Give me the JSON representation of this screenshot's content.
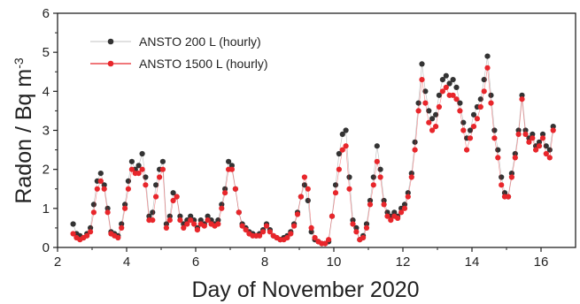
{
  "chart_data": {
    "type": "line",
    "xlabel": "Day of November 2020",
    "ylabel_main": "Radon  /  Bq m",
    "ylabel_exp": "-3",
    "xlim": [
      2,
      17
    ],
    "ylim": [
      0,
      6
    ],
    "x_ticks": [
      2,
      4,
      6,
      8,
      10,
      12,
      14,
      16
    ],
    "x_tick_labels": [
      "2",
      "4",
      "6",
      "8",
      "10",
      "12",
      "14",
      "16"
    ],
    "y_ticks": [
      0,
      1,
      2,
      3,
      4,
      5,
      6
    ],
    "y_tick_labels": [
      "0",
      "1",
      "2",
      "3",
      "4",
      "5",
      "6"
    ],
    "grid": false,
    "legend_position": "top-left",
    "series": [
      {
        "name": "ANSTO 200 L (hourly)",
        "color": "#333333",
        "marker": "dot",
        "x": [
          2.45,
          2.55,
          2.65,
          2.75,
          2.85,
          2.95,
          3.05,
          3.15,
          3.25,
          3.35,
          3.45,
          3.55,
          3.65,
          3.75,
          3.85,
          3.95,
          4.05,
          4.15,
          4.25,
          4.35,
          4.45,
          4.55,
          4.65,
          4.75,
          4.85,
          4.95,
          5.05,
          5.15,
          5.25,
          5.35,
          5.45,
          5.55,
          5.65,
          5.75,
          5.85,
          5.95,
          6.05,
          6.15,
          6.25,
          6.35,
          6.45,
          6.55,
          6.65,
          6.75,
          6.85,
          6.95,
          7.05,
          7.15,
          7.25,
          7.35,
          7.45,
          7.55,
          7.65,
          7.75,
          7.85,
          7.95,
          8.05,
          8.15,
          8.25,
          8.35,
          8.45,
          8.55,
          8.65,
          8.75,
          8.85,
          8.95,
          9.05,
          9.15,
          9.25,
          9.35,
          9.45,
          9.55,
          9.65,
          9.75,
          9.85,
          9.95,
          10.05,
          10.15,
          10.25,
          10.35,
          10.45,
          10.55,
          10.65,
          10.75,
          10.85,
          10.95,
          11.05,
          11.15,
          11.25,
          11.35,
          11.45,
          11.55,
          11.65,
          11.75,
          11.85,
          11.95,
          12.05,
          12.15,
          12.25,
          12.35,
          12.45,
          12.55,
          12.65,
          12.75,
          12.85,
          12.95,
          13.05,
          13.15,
          13.25,
          13.35,
          13.45,
          13.55,
          13.65,
          13.75,
          13.85,
          13.95,
          14.05,
          14.15,
          14.25,
          14.35,
          14.45,
          14.55,
          14.65,
          14.75,
          14.85,
          14.95,
          15.05,
          15.15,
          15.25,
          15.35,
          15.45,
          15.55,
          15.65,
          15.75,
          15.85,
          15.95,
          16.05,
          16.15,
          16.25,
          16.35
        ],
        "y": [
          0.6,
          0.35,
          0.3,
          0.25,
          0.35,
          0.5,
          1.1,
          1.7,
          1.9,
          1.6,
          1.0,
          0.4,
          0.35,
          0.3,
          0.6,
          1.1,
          1.7,
          2.2,
          2.0,
          2.1,
          2.4,
          1.8,
          0.8,
          0.9,
          1.6,
          2.0,
          2.2,
          0.6,
          0.8,
          1.4,
          1.3,
          0.8,
          0.6,
          0.7,
          0.8,
          0.7,
          0.5,
          0.7,
          0.6,
          0.8,
          0.7,
          0.6,
          0.7,
          1.1,
          1.5,
          2.2,
          2.1,
          1.5,
          0.9,
          0.6,
          0.5,
          0.4,
          0.35,
          0.3,
          0.35,
          0.45,
          0.6,
          0.45,
          0.3,
          0.25,
          0.2,
          0.25,
          0.3,
          0.4,
          0.6,
          0.9,
          1.3,
          1.6,
          1.2,
          0.4,
          0.2,
          0.15,
          0.1,
          0.1,
          0.15,
          0.8,
          1.6,
          2.4,
          2.9,
          3.0,
          1.8,
          0.7,
          0.5,
          0.2,
          0.3,
          0.6,
          1.2,
          1.8,
          2.6,
          2.0,
          1.2,
          0.9,
          0.8,
          0.9,
          0.8,
          1.0,
          1.1,
          1.4,
          1.9,
          2.7,
          3.7,
          4.7,
          4.0,
          3.5,
          3.3,
          3.4,
          3.9,
          4.3,
          4.4,
          4.2,
          4.3,
          4.1,
          3.7,
          3.2,
          2.8,
          3.0,
          3.4,
          3.6,
          3.8,
          4.3,
          4.9,
          3.9,
          3.0,
          2.5,
          1.8,
          1.4,
          1.3,
          1.9,
          2.4,
          3.0,
          3.9,
          3.0,
          2.8,
          2.9,
          2.6,
          2.7,
          2.9,
          2.6,
          2.5,
          3.1
        ]
      },
      {
        "name": "ANSTO 1500 L (hourly)",
        "color": "#e8262b",
        "marker": "dot",
        "x": [
          2.45,
          2.55,
          2.65,
          2.75,
          2.85,
          2.95,
          3.05,
          3.15,
          3.25,
          3.35,
          3.45,
          3.55,
          3.65,
          3.75,
          3.85,
          3.95,
          4.05,
          4.15,
          4.25,
          4.35,
          4.45,
          4.55,
          4.65,
          4.75,
          4.85,
          4.95,
          5.05,
          5.15,
          5.25,
          5.35,
          5.45,
          5.55,
          5.65,
          5.75,
          5.85,
          5.95,
          6.05,
          6.15,
          6.25,
          6.35,
          6.45,
          6.55,
          6.65,
          6.75,
          6.85,
          6.95,
          7.05,
          7.15,
          7.25,
          7.35,
          7.45,
          7.55,
          7.65,
          7.75,
          7.85,
          7.95,
          8.05,
          8.15,
          8.25,
          8.35,
          8.45,
          8.55,
          8.65,
          8.75,
          8.85,
          8.95,
          9.05,
          9.15,
          9.25,
          9.35,
          9.45,
          9.55,
          9.65,
          9.75,
          9.85,
          9.95,
          10.05,
          10.15,
          10.25,
          10.35,
          10.45,
          10.55,
          10.65,
          10.75,
          10.85,
          10.95,
          11.05,
          11.15,
          11.25,
          11.35,
          11.45,
          11.55,
          11.65,
          11.75,
          11.85,
          11.95,
          12.05,
          12.15,
          12.25,
          12.35,
          12.45,
          12.55,
          12.65,
          12.75,
          12.85,
          12.95,
          13.05,
          13.15,
          13.25,
          13.35,
          13.45,
          13.55,
          13.65,
          13.75,
          13.85,
          13.95,
          14.05,
          14.15,
          14.25,
          14.35,
          14.45,
          14.55,
          14.65,
          14.75,
          14.85,
          14.95,
          15.05,
          15.15,
          15.25,
          15.35,
          15.45,
          15.55,
          15.65,
          15.75,
          15.85,
          15.95,
          16.05,
          16.15,
          16.25,
          16.35
        ],
        "y": [
          0.35,
          0.25,
          0.2,
          0.25,
          0.3,
          0.4,
          0.9,
          1.5,
          1.7,
          1.5,
          0.9,
          0.35,
          0.3,
          0.25,
          0.5,
          1.0,
          1.5,
          2.0,
          1.9,
          1.9,
          2.0,
          1.6,
          0.7,
          0.7,
          1.3,
          1.8,
          2.0,
          0.5,
          0.7,
          1.2,
          1.3,
          0.7,
          0.5,
          0.6,
          0.7,
          0.6,
          0.45,
          0.6,
          0.55,
          0.7,
          0.6,
          0.55,
          0.6,
          1.0,
          1.4,
          2.0,
          2.0,
          1.5,
          0.9,
          0.55,
          0.45,
          0.35,
          0.3,
          0.3,
          0.3,
          0.4,
          0.55,
          0.4,
          0.3,
          0.25,
          0.2,
          0.2,
          0.25,
          0.35,
          0.55,
          0.85,
          1.3,
          1.8,
          1.5,
          0.5,
          0.25,
          0.15,
          0.1,
          0.1,
          0.2,
          0.8,
          1.4,
          2.0,
          2.5,
          2.6,
          1.5,
          0.6,
          0.4,
          0.2,
          0.25,
          0.5,
          1.1,
          1.6,
          2.2,
          1.8,
          1.1,
          0.8,
          0.7,
          0.8,
          0.75,
          0.9,
          1.0,
          1.3,
          1.8,
          2.5,
          3.5,
          4.3,
          3.7,
          3.2,
          3.0,
          3.1,
          3.6,
          4.0,
          4.1,
          3.9,
          3.9,
          3.8,
          3.5,
          3.0,
          2.5,
          2.8,
          3.1,
          3.3,
          3.6,
          4.0,
          4.6,
          3.7,
          2.8,
          2.3,
          1.6,
          1.3,
          1.3,
          1.8,
          2.3,
          2.9,
          3.8,
          2.9,
          2.7,
          2.8,
          2.5,
          2.6,
          2.8,
          2.4,
          2.3,
          3.0
        ]
      }
    ]
  }
}
